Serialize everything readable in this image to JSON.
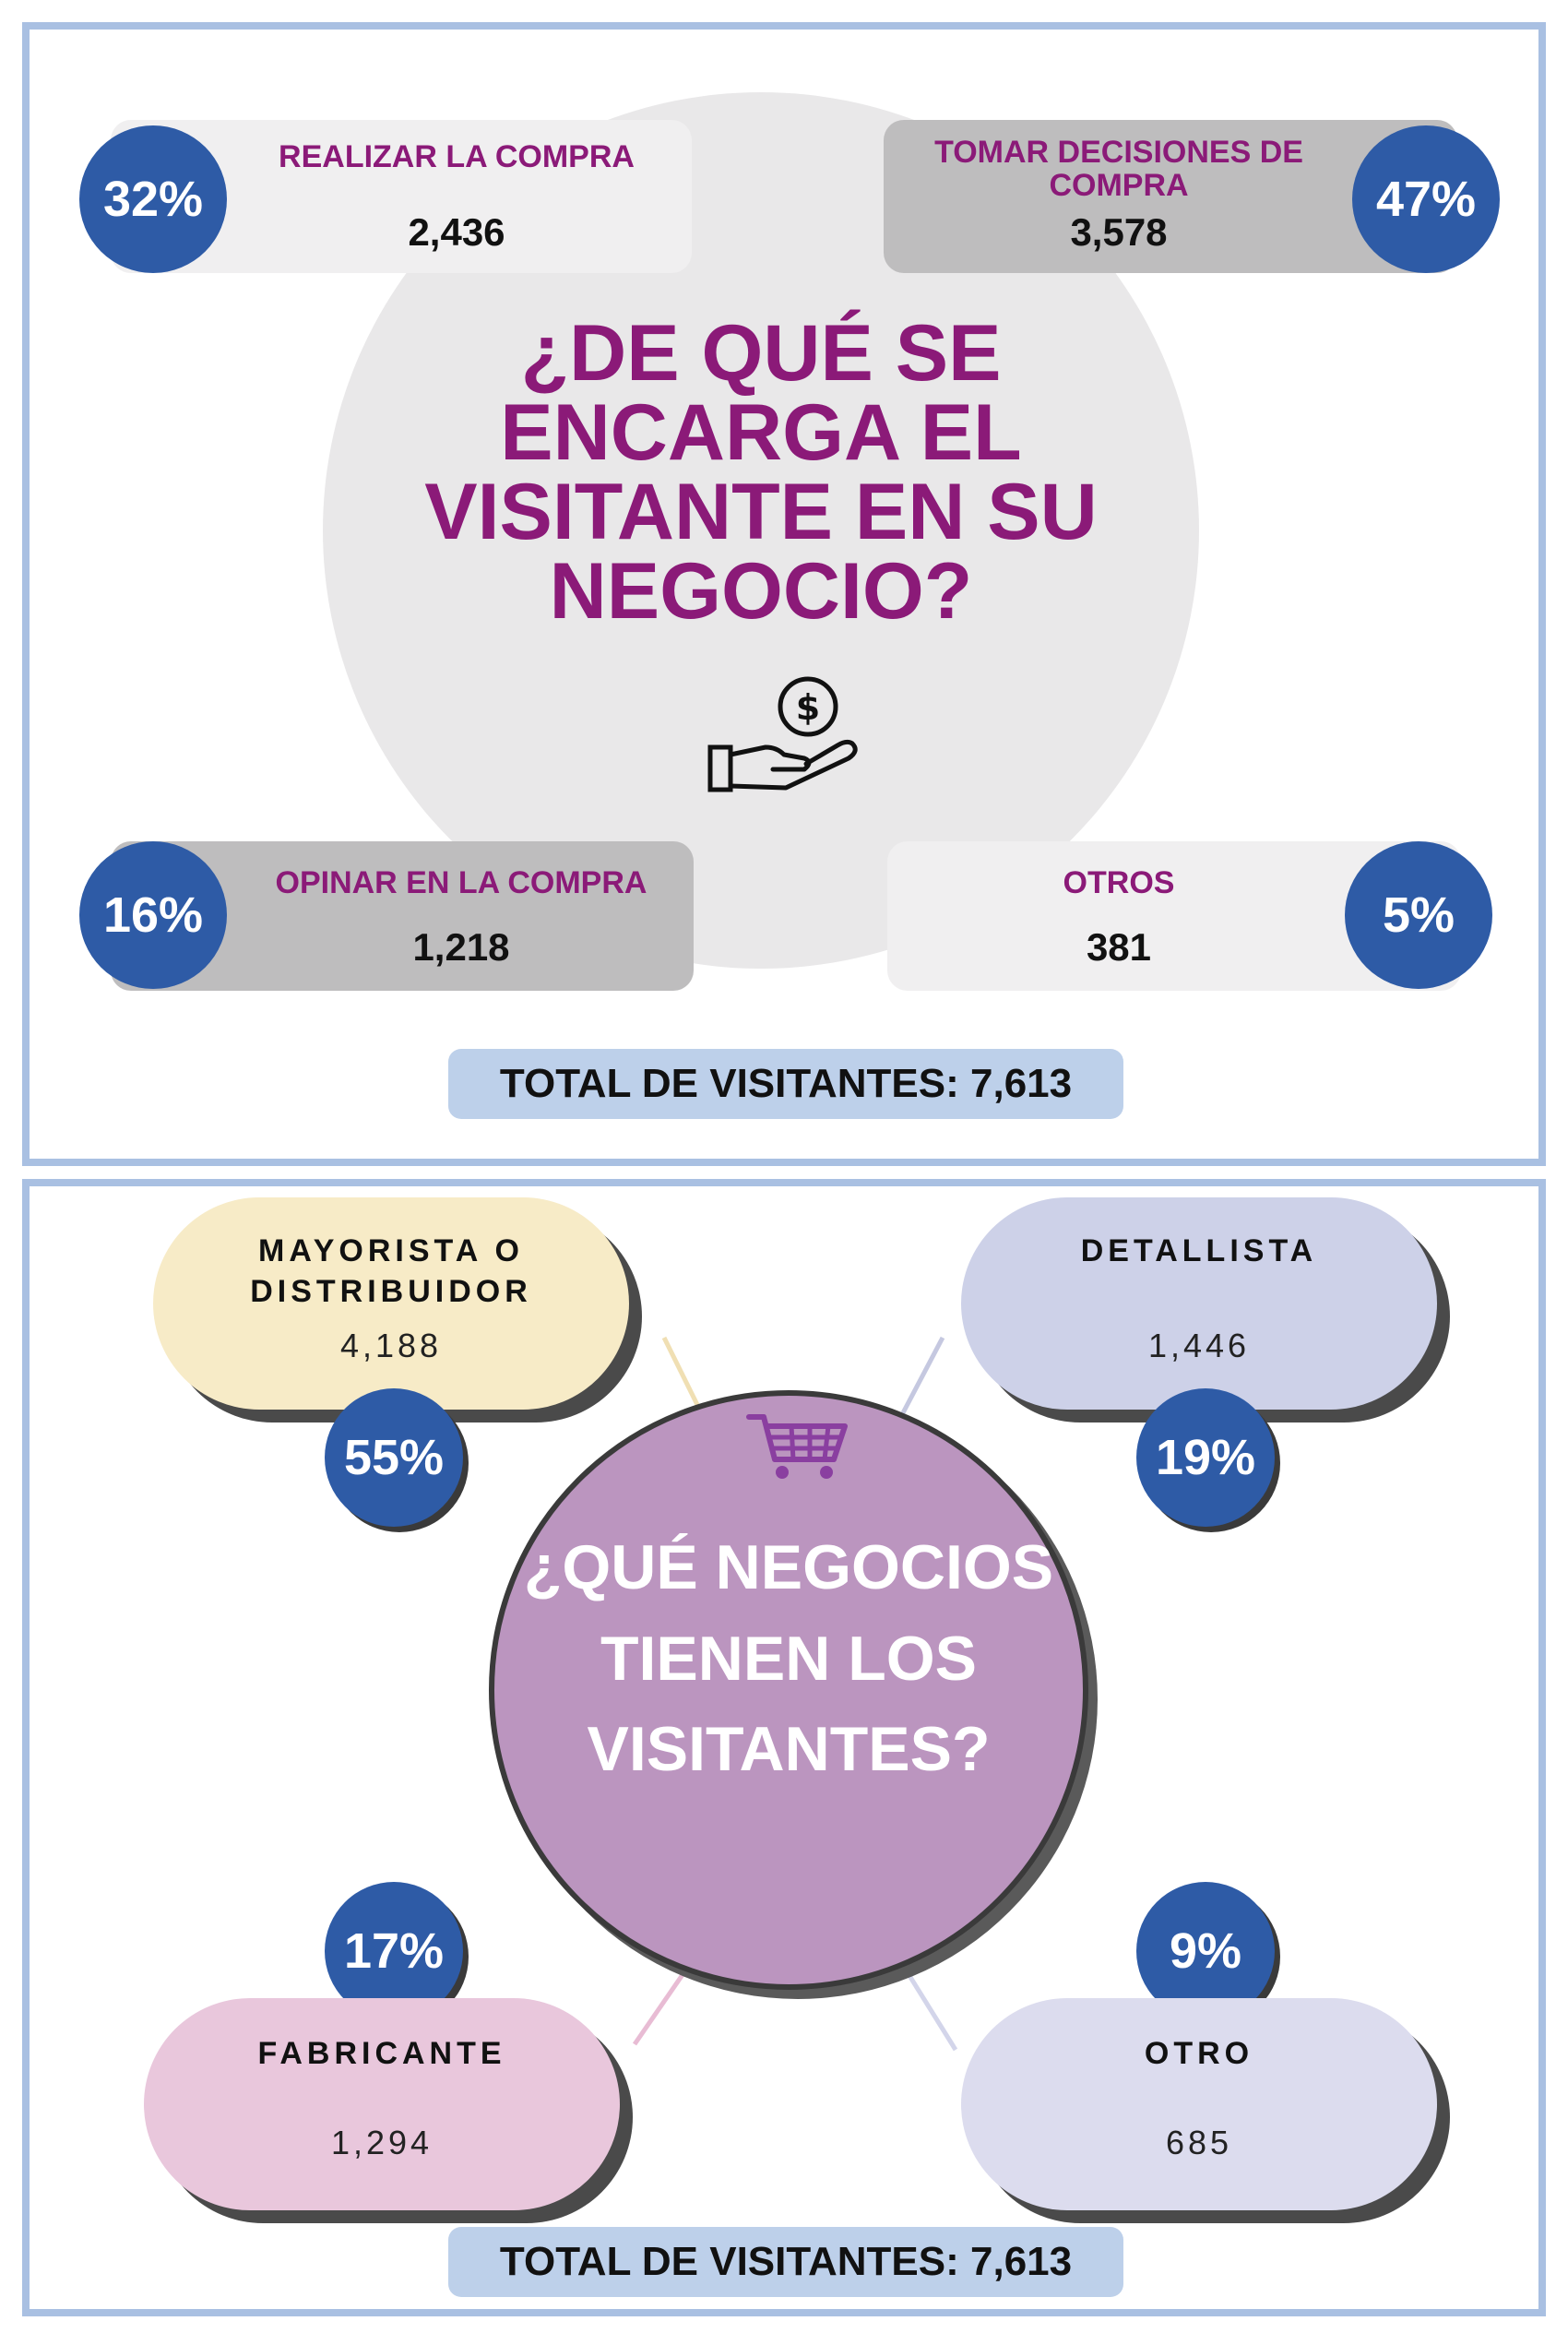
{
  "top": {
    "title": "¿DE QUÉ SE ENCARGA EL VISITANTE EN SU NEGOCIO?",
    "icon": "hand-money-icon",
    "categories": [
      {
        "label": "REALIZAR LA COMPRA",
        "value": "2,436",
        "percent": "32%"
      },
      {
        "label": "TOMAR DECISIONES DE COMPRA",
        "value": "3,578",
        "percent": "47%"
      },
      {
        "label": "OPINAR EN LA COMPRA",
        "value": "1,218",
        "percent": "16%"
      },
      {
        "label": "OTROS",
        "value": "381",
        "percent": "5%"
      }
    ],
    "total": "TOTAL DE VISITANTES: 7,613"
  },
  "bottom": {
    "title": "¿QUÉ NEGOCIOS TIENEN LOS VISITANTES?",
    "icon": "shopping-cart-icon",
    "categories": [
      {
        "label": "MAYORISTA O DISTRIBUIDOR",
        "value": "4,188",
        "percent": "55%"
      },
      {
        "label": "DETALLISTA",
        "value": "1,446",
        "percent": "19%"
      },
      {
        "label": "FABRICANTE",
        "value": "1,294",
        "percent": "17%"
      },
      {
        "label": "OTRO",
        "value": "685",
        "percent": "9%"
      }
    ],
    "total": "TOTAL DE VISITANTES: 7,613"
  },
  "colors": {
    "border": "#a9c0e2",
    "purple_text": "#8b1a78",
    "blue_circle": "#2e5ba6",
    "total_box": "#bdd0ea",
    "mayorista": "#f7ebc7",
    "detallista": "#cdd1e8",
    "fabricante": "#e9c7dc",
    "otro": "#dcdcee",
    "center_circle": "#bb95bf"
  }
}
